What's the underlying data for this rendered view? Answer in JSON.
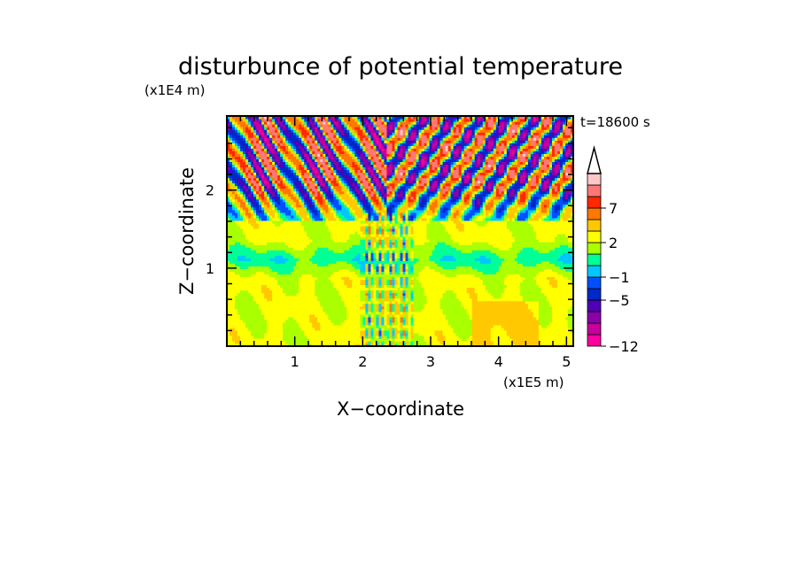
{
  "chart_data": {
    "type": "heatmap",
    "title": "disturbunce of potential temperature",
    "time_label": "t=18600 s",
    "xlabel": "X−coordinate",
    "ylabel": "Z−coordinate",
    "x_unit": "(x1E5 m)",
    "y_unit": "(x1E4 m)",
    "xlim": [
      0,
      5.1
    ],
    "ylim": [
      0,
      2.95
    ],
    "x_ticks": [
      {
        "value": 1,
        "label": "1"
      },
      {
        "value": 2,
        "label": "2"
      },
      {
        "value": 3,
        "label": "3"
      },
      {
        "value": 4,
        "label": "4"
      },
      {
        "value": 5,
        "label": "5"
      }
    ],
    "y_ticks": [
      {
        "value": 1,
        "label": "1"
      },
      {
        "value": 2,
        "label": "2"
      }
    ],
    "colorbar": {
      "levels": [
        -12,
        -10,
        -8,
        -6,
        -5,
        -3,
        -1,
        0,
        1,
        2,
        3,
        5,
        7,
        9,
        12
      ],
      "colors": [
        "#ff00a0",
        "#c8009c",
        "#8c00a8",
        "#5000b8",
        "#0028c8",
        "#0050ff",
        "#00c8ff",
        "#00ff96",
        "#aaff00",
        "#ffff00",
        "#ffc800",
        "#ff7800",
        "#ff2800",
        "#ff7878",
        "#ffc8c8"
      ],
      "labels": [
        {
          "value": -12,
          "label": "−12"
        },
        {
          "value": -5,
          "label": "−5"
        },
        {
          "value": -1,
          "label": "−1"
        },
        {
          "value": 2,
          "label": "2"
        },
        {
          "value": 7,
          "label": "7"
        }
      ],
      "extend": "max"
    }
  }
}
